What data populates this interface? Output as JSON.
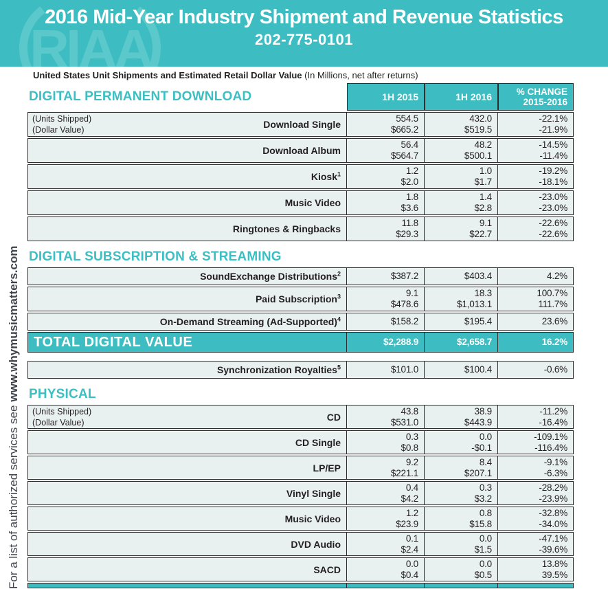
{
  "header": {
    "title": "2016 Mid-Year Industry Shipment and Revenue Statistics",
    "phone": "202-775-0101",
    "logo_text": "RIAA"
  },
  "sidebar": {
    "text": "For a list of authorized services see",
    "url": "www.whymusicmatters.com"
  },
  "subtitle": {
    "bold": "United States Unit Shipments and Estimated Retail Dollar Value",
    "normal": "(In Millions, net after returns)"
  },
  "colors": {
    "teal": "#3dbdc1",
    "teal_watermark": "#5bc8cb",
    "accent_text": "#3bbfc3",
    "row_background": "#e9f1f0",
    "border": "#2d2d2d",
    "text": "#231f20"
  },
  "table": {
    "columns": {
      "c1": "1H 2015",
      "c2": "1H 2016",
      "c3a": "% CHANGE",
      "c3b": "2015-2016"
    },
    "sections": [
      {
        "id": "dpd",
        "title": "DIGITAL PERMANENT DOWNLOAD",
        "columns_header": true,
        "rows": [
          {
            "label": "Download Single",
            "notes": [
              "(Units Shipped)",
              "(Dollar Value)"
            ],
            "cells": [
              [
                "554.5",
                "$665.2"
              ],
              [
                "432.0",
                "$519.5"
              ],
              [
                "-22.1%",
                "-21.9%"
              ]
            ]
          },
          {
            "label": "Download Album",
            "cells": [
              [
                "56.4",
                "$564.7"
              ],
              [
                "48.2",
                "$500.1"
              ],
              [
                "-14.5%",
                "-11.4%"
              ]
            ]
          },
          {
            "label": "Kiosk",
            "sup": "1",
            "cells": [
              [
                "1.2",
                "$2.0"
              ],
              [
                "1.0",
                "$1.7"
              ],
              [
                "-19.2%",
                "-18.1%"
              ]
            ]
          },
          {
            "label": "Music Video",
            "cells": [
              [
                "1.8",
                "$3.6"
              ],
              [
                "1.4",
                "$2.8"
              ],
              [
                "-23.0%",
                "-23.0%"
              ]
            ]
          },
          {
            "label": "Ringtones & Ringbacks",
            "cells": [
              [
                "11.8",
                "$29.3"
              ],
              [
                "9.1",
                "$22.7"
              ],
              [
                "-22.6%",
                "-22.6%"
              ]
            ]
          }
        ]
      },
      {
        "id": "dss",
        "title": "DIGITAL SUBSCRIPTION & STREAMING",
        "columns_header": false,
        "rows": [
          {
            "label": "SoundExchange Distributions",
            "sup": "2",
            "cells": [
              [
                "$387.2"
              ],
              [
                "$403.4"
              ],
              [
                "4.2%"
              ]
            ]
          },
          {
            "label": "Paid Subscription",
            "sup": "3",
            "cells": [
              [
                "9.1",
                "$478.6"
              ],
              [
                "18.3",
                "$1,013.1"
              ],
              [
                "100.7%",
                "111.7%"
              ]
            ]
          },
          {
            "label": "On-Demand Streaming (Ad-Supported)",
            "sup": "4",
            "cells": [
              [
                "$158.2"
              ],
              [
                "$195.4"
              ],
              [
                "23.6%"
              ]
            ]
          }
        ],
        "total": {
          "label": "TOTAL DIGITAL VALUE",
          "cells": [
            "$2,288.9",
            "$2,658.7",
            "16.2%"
          ]
        }
      },
      {
        "id": "sync",
        "title": null,
        "columns_header": false,
        "rows": [
          {
            "label": "Synchronization Royalties",
            "sup": "5",
            "cells": [
              [
                "$101.0"
              ],
              [
                "$100.4"
              ],
              [
                "-0.6%"
              ]
            ]
          }
        ]
      },
      {
        "id": "physical",
        "title": "PHYSICAL",
        "columns_header": false,
        "rows": [
          {
            "label": "CD",
            "notes": [
              "(Units Shipped)",
              "(Dollar Value)"
            ],
            "cells": [
              [
                "43.8",
                "$531.0"
              ],
              [
                "38.9",
                "$443.9"
              ],
              [
                "-11.2%",
                "-16.4%"
              ]
            ]
          },
          {
            "label": "CD Single",
            "cells": [
              [
                "0.3",
                "$0.8"
              ],
              [
                "0.0",
                "-$0.1"
              ],
              [
                "-109.1%",
                "-116.4%"
              ]
            ]
          },
          {
            "label": "LP/EP",
            "cells": [
              [
                "9.2",
                "$221.1"
              ],
              [
                "8.4",
                "$207.1"
              ],
              [
                "-9.1%",
                "-6.3%"
              ]
            ]
          },
          {
            "label": "Vinyl Single",
            "cells": [
              [
                "0.4",
                "$4.2"
              ],
              [
                "0.3",
                "$3.2"
              ],
              [
                "-28.2%",
                "-23.9%"
              ]
            ]
          },
          {
            "label": "Music Video",
            "cells": [
              [
                "1.2",
                "$23.9"
              ],
              [
                "0.8",
                "$15.8"
              ],
              [
                "-32.8%",
                "-34.0%"
              ]
            ]
          },
          {
            "label": "DVD Audio",
            "cells": [
              [
                "0.1",
                "$2.4"
              ],
              [
                "0.0",
                "$1.5"
              ],
              [
                "-47.1%",
                "-39.6%"
              ]
            ]
          },
          {
            "label": "SACD",
            "cells": [
              [
                "0.0",
                "$0.4"
              ],
              [
                "0.0",
                "$0.5"
              ],
              [
                "13.8%",
                "39.5%"
              ]
            ]
          }
        ],
        "bottom_partial_row": true
      }
    ]
  }
}
